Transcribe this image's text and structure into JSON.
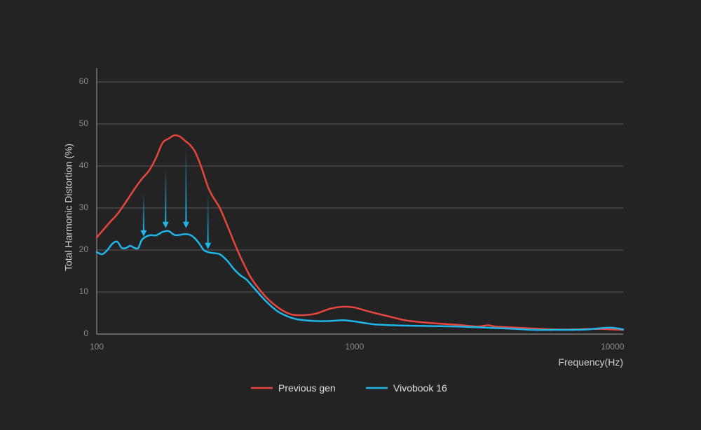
{
  "chart_data": {
    "type": "line",
    "title": "",
    "xlabel": "Frequency(Hz)",
    "ylabel": "Total Harmonic Distortion (%)",
    "x_scale": "log",
    "xlim": [
      100,
      11000
    ],
    "ylim": [
      0,
      62
    ],
    "x_ticks": [
      100,
      1000,
      10000
    ],
    "x_tick_labels": [
      "100",
      "1000",
      "10000"
    ],
    "y_ticks": [
      0,
      10,
      20,
      30,
      40,
      50,
      60
    ],
    "y_tick_labels": [
      "0",
      "10",
      "20",
      "30",
      "40",
      "50",
      "60"
    ],
    "grid": "horizontal",
    "legend_position": "bottom-center",
    "series": [
      {
        "name": "Previous gen",
        "color": "#e8453c",
        "x": [
          100,
          105,
          112,
          120,
          130,
          140,
          150,
          160,
          170,
          180,
          190,
          200,
          210,
          220,
          230,
          240,
          250,
          260,
          270,
          280,
          300,
          320,
          340,
          360,
          380,
          400,
          450,
          500,
          550,
          600,
          700,
          800,
          900,
          1000,
          1100,
          1200,
          1400,
          1600,
          2000,
          2500,
          3000,
          3300,
          3500,
          4000,
          5000,
          6000,
          7000,
          8000,
          9000,
          10000,
          11000
        ],
        "y": [
          23,
          24.5,
          26.5,
          28.5,
          31.5,
          34.5,
          37,
          39,
          42,
          45.5,
          46.5,
          47.3,
          47,
          46,
          45,
          43.5,
          41,
          38,
          35,
          33,
          30,
          26,
          22,
          18.5,
          15.5,
          13,
          9,
          6.5,
          5,
          4.5,
          4.8,
          6,
          6.5,
          6.3,
          5.6,
          5,
          4,
          3.2,
          2.6,
          2.2,
          1.8,
          2.1,
          1.8,
          1.6,
          1.3,
          1.1,
          1.1,
          1.2,
          1.2,
          1.1,
          1.0
        ]
      },
      {
        "name": "Vivobook 16",
        "color": "#1fb6ea",
        "x": [
          100,
          105,
          110,
          115,
          120,
          125,
          130,
          135,
          140,
          145,
          150,
          160,
          170,
          180,
          190,
          200,
          210,
          220,
          230,
          240,
          250,
          260,
          270,
          280,
          300,
          320,
          340,
          360,
          380,
          400,
          450,
          500,
          550,
          600,
          700,
          800,
          900,
          1000,
          1100,
          1200,
          1400,
          1600,
          2000,
          2500,
          3000,
          4000,
          5000,
          6000,
          7000,
          8000,
          9000,
          10000,
          11000
        ],
        "y": [
          19.5,
          19,
          20,
          21.5,
          22,
          20.5,
          20.5,
          21,
          20.5,
          20.5,
          22.5,
          23.5,
          23.5,
          24.3,
          24.5,
          23.6,
          23.6,
          23.8,
          23.6,
          22.8,
          21.5,
          20,
          19.5,
          19.3,
          19,
          17.5,
          15.5,
          14,
          13,
          11.5,
          8,
          5.5,
          4.2,
          3.5,
          3.1,
          3.1,
          3.3,
          3.0,
          2.6,
          2.3,
          2.1,
          2.0,
          1.9,
          1.8,
          1.6,
          1.3,
          1.0,
          1.0,
          1.0,
          1.1,
          1.4,
          1.5,
          1.1
        ]
      }
    ],
    "annotations": {
      "type": "arrows",
      "color": "#1fb6ea",
      "x": [
        152,
        185,
        222,
        270
      ],
      "from_y": [
        33.5,
        39.5,
        44.5,
        33
      ],
      "to_y": [
        23.2,
        25.2,
        25.2,
        20.2
      ]
    }
  }
}
